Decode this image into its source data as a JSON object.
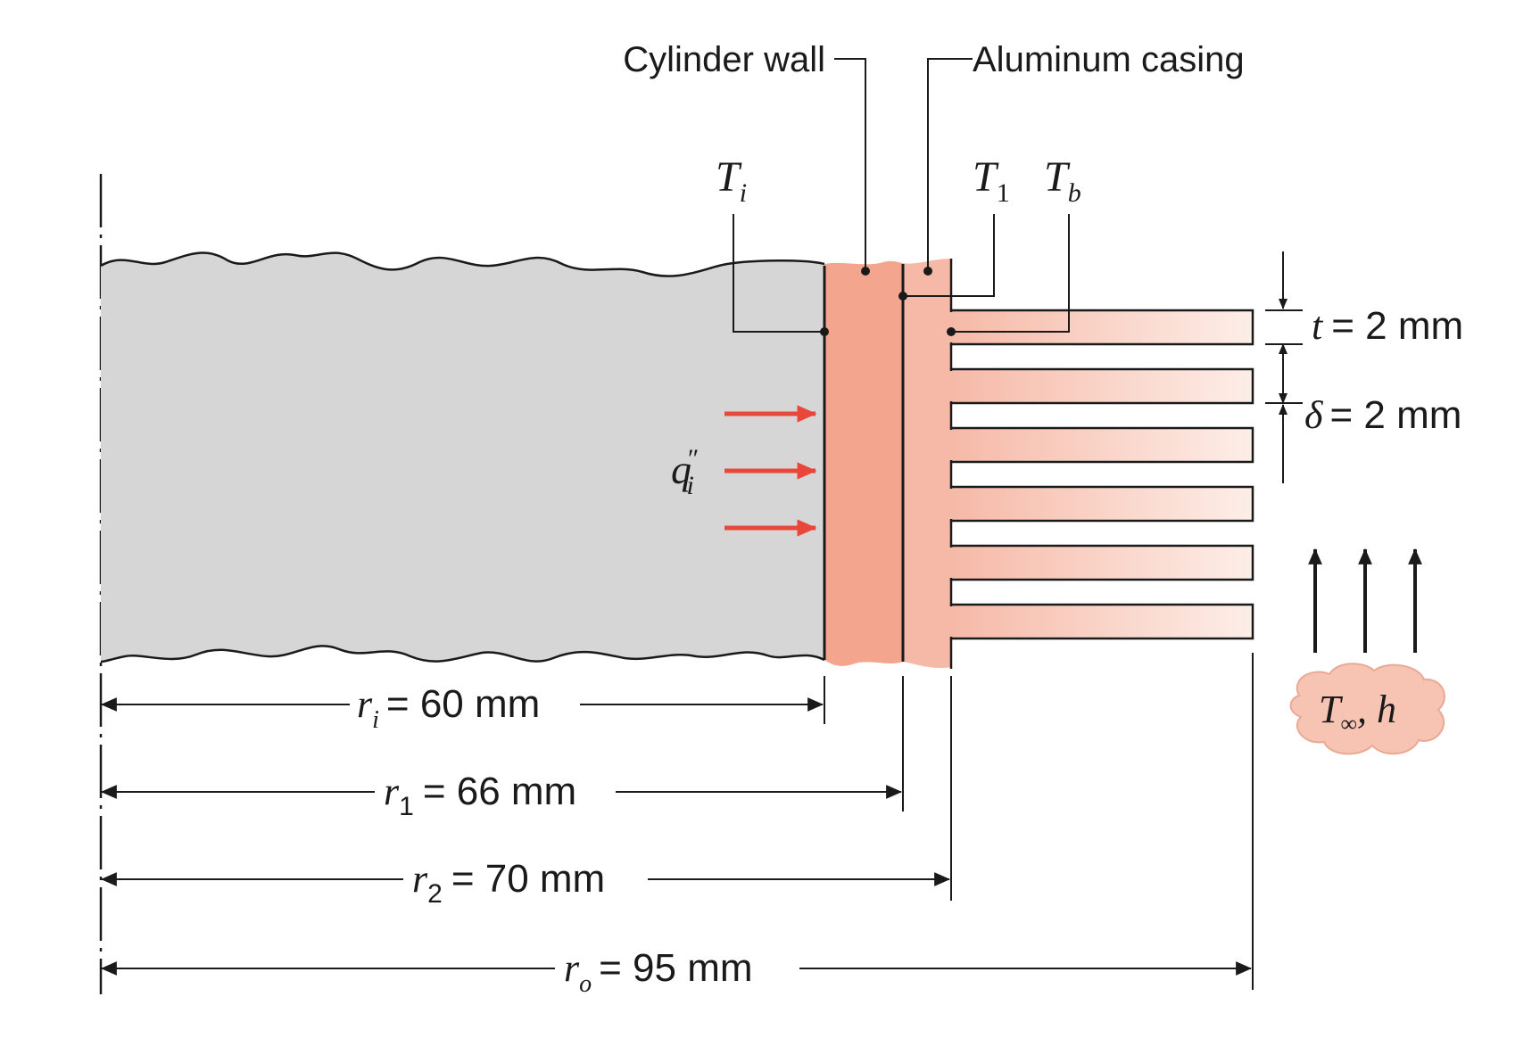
{
  "labels": {
    "cylinder_wall": "Cylinder wall",
    "aluminum_casing": "Aluminum casing",
    "heat_flux": {
      "sym": "q",
      "prime": "″",
      "sub": "i"
    },
    "temp_inner": {
      "sym": "T",
      "sub": "i"
    },
    "temp_one": {
      "sym": "T",
      "sub": "1"
    },
    "temp_base": {
      "sym": "T",
      "sub": "b"
    },
    "fluid": {
      "sym": "T",
      "sub": "∞",
      "rest": ", h"
    }
  },
  "fin": {
    "t": {
      "sym": "t",
      "value": "= 2 mm"
    },
    "delta": {
      "sym": "δ",
      "value": "= 2 mm"
    }
  },
  "dimensions": [
    {
      "sym": "r",
      "sub": "i",
      "value": "= 60 mm"
    },
    {
      "sym": "r",
      "sub": "1",
      "value": "= 66 mm"
    },
    {
      "sym": "r",
      "sub": "2",
      "value": "= 70 mm"
    },
    {
      "sym": "r",
      "sub": "o",
      "value": "= 95 mm"
    }
  ],
  "colors": {
    "cylinder_gas": "#d6d6d6",
    "wall": "#f3a58d",
    "casing": "#f6b9a7",
    "fin_fade": "#fbe3da",
    "heat_arrow": "#e8473a",
    "line": "#1a1a1a"
  },
  "fin_count": 6
}
